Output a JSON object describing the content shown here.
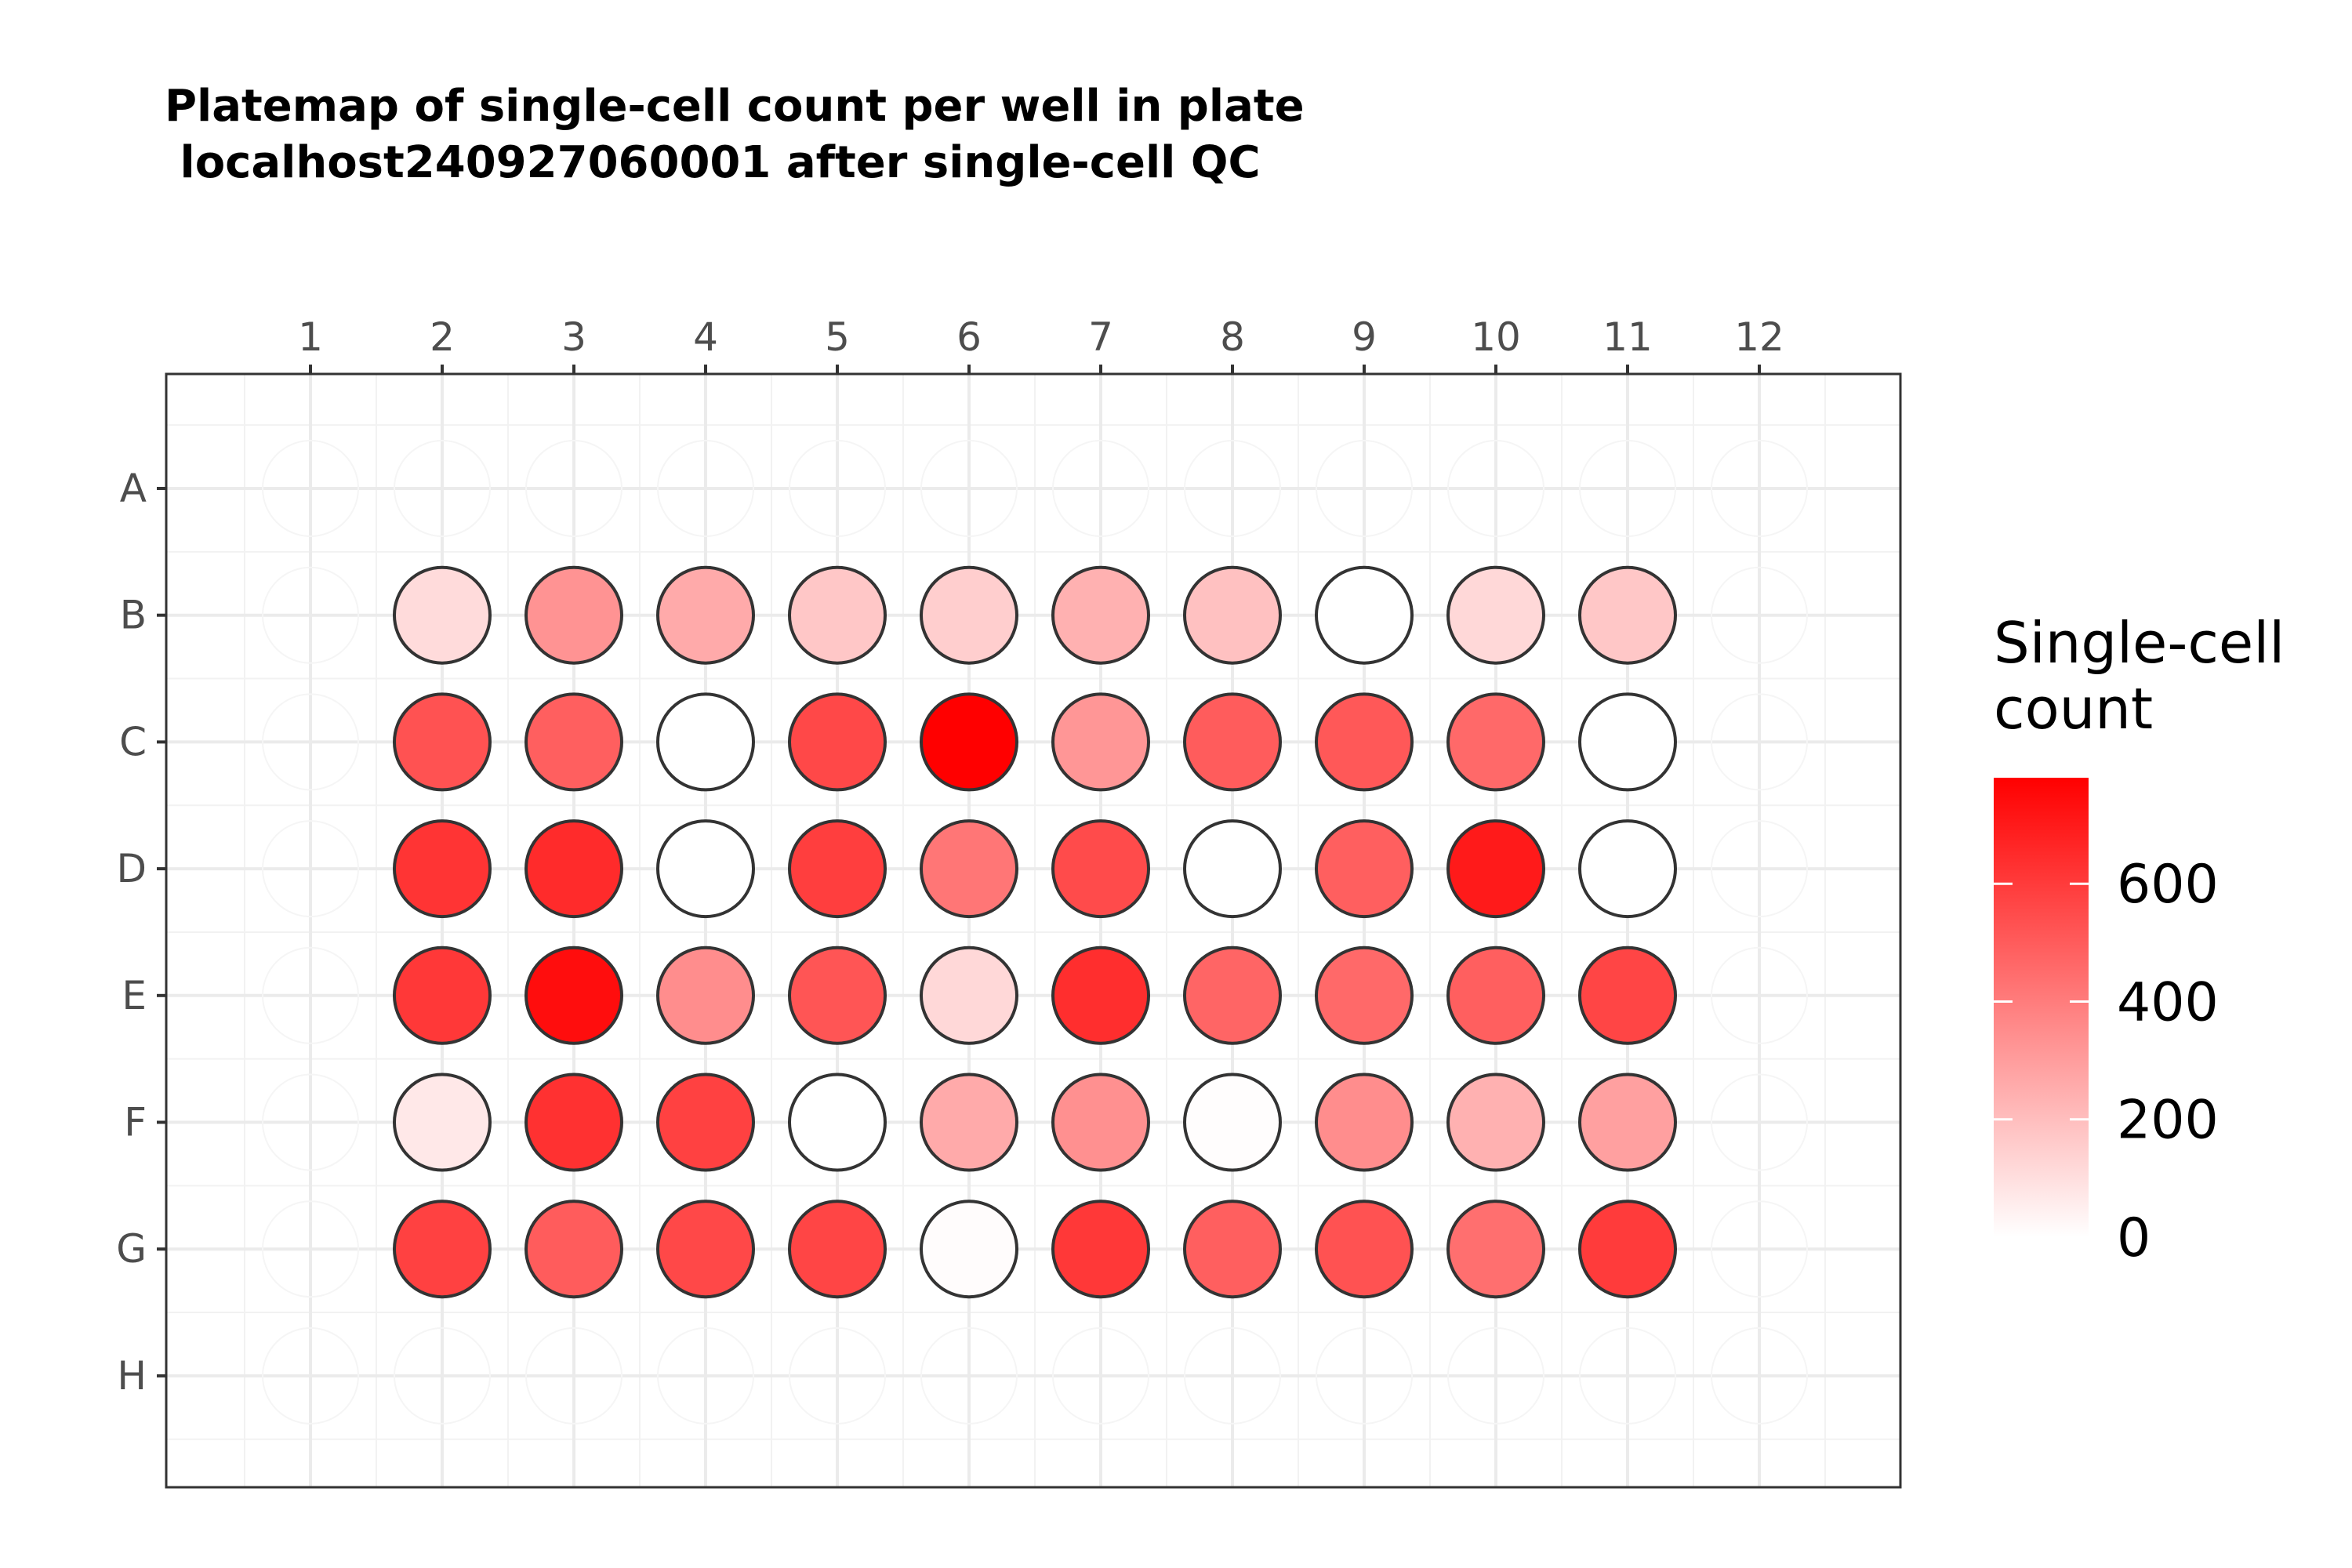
{
  "chart_data": {
    "type": "heatmap",
    "title": "Platemap of single-cell count per well in plate\n localhost240927060001 after single-cell QC",
    "columns": [
      "1",
      "2",
      "3",
      "4",
      "5",
      "6",
      "7",
      "8",
      "9",
      "10",
      "11",
      "12"
    ],
    "rows": [
      "A",
      "B",
      "C",
      "D",
      "E",
      "F",
      "G",
      "H"
    ],
    "legend": {
      "title": "Single-cell\ncount",
      "ticks": [
        0,
        200,
        400,
        600
      ],
      "range": [
        0,
        780
      ],
      "color_low": "#ffffff",
      "color_high": "#ff0000"
    },
    "grid": true,
    "legend_position": "right",
    "wells": [
      {
        "row": "B",
        "col": 2,
        "value": 110
      },
      {
        "row": "B",
        "col": 3,
        "value": 330
      },
      {
        "row": "B",
        "col": 4,
        "value": 260
      },
      {
        "row": "B",
        "col": 5,
        "value": 170
      },
      {
        "row": "B",
        "col": 6,
        "value": 150
      },
      {
        "row": "B",
        "col": 7,
        "value": 240
      },
      {
        "row": "B",
        "col": 8,
        "value": 190
      },
      {
        "row": "B",
        "col": 9,
        "value": 0
      },
      {
        "row": "B",
        "col": 10,
        "value": 120
      },
      {
        "row": "B",
        "col": 11,
        "value": 170
      },
      {
        "row": "C",
        "col": 2,
        "value": 530
      },
      {
        "row": "C",
        "col": 3,
        "value": 490
      },
      {
        "row": "C",
        "col": 4,
        "value": 0
      },
      {
        "row": "C",
        "col": 5,
        "value": 560
      },
      {
        "row": "C",
        "col": 6,
        "value": 780
      },
      {
        "row": "C",
        "col": 7,
        "value": 320
      },
      {
        "row": "C",
        "col": 8,
        "value": 500
      },
      {
        "row": "C",
        "col": 9,
        "value": 510
      },
      {
        "row": "C",
        "col": 10,
        "value": 460
      },
      {
        "row": "C",
        "col": 11,
        "value": 0
      },
      {
        "row": "D",
        "col": 2,
        "value": 620
      },
      {
        "row": "D",
        "col": 3,
        "value": 650
      },
      {
        "row": "D",
        "col": 4,
        "value": 0
      },
      {
        "row": "D",
        "col": 5,
        "value": 590
      },
      {
        "row": "D",
        "col": 6,
        "value": 420
      },
      {
        "row": "D",
        "col": 7,
        "value": 550
      },
      {
        "row": "D",
        "col": 8,
        "value": 0
      },
      {
        "row": "D",
        "col": 9,
        "value": 490
      },
      {
        "row": "D",
        "col": 10,
        "value": 700
      },
      {
        "row": "D",
        "col": 11,
        "value": 0
      },
      {
        "row": "E",
        "col": 2,
        "value": 610
      },
      {
        "row": "E",
        "col": 3,
        "value": 740
      },
      {
        "row": "E",
        "col": 4,
        "value": 350
      },
      {
        "row": "E",
        "col": 5,
        "value": 520
      },
      {
        "row": "E",
        "col": 6,
        "value": 120
      },
      {
        "row": "E",
        "col": 7,
        "value": 640
      },
      {
        "row": "E",
        "col": 8,
        "value": 470
      },
      {
        "row": "E",
        "col": 9,
        "value": 460
      },
      {
        "row": "E",
        "col": 10,
        "value": 490
      },
      {
        "row": "E",
        "col": 11,
        "value": 570
      },
      {
        "row": "F",
        "col": 2,
        "value": 70
      },
      {
        "row": "F",
        "col": 3,
        "value": 630
      },
      {
        "row": "F",
        "col": 4,
        "value": 580
      },
      {
        "row": "F",
        "col": 5,
        "value": 0
      },
      {
        "row": "F",
        "col": 6,
        "value": 260
      },
      {
        "row": "F",
        "col": 7,
        "value": 340
      },
      {
        "row": "F",
        "col": 8,
        "value": 5
      },
      {
        "row": "F",
        "col": 9,
        "value": 350
      },
      {
        "row": "F",
        "col": 10,
        "value": 240
      },
      {
        "row": "F",
        "col": 11,
        "value": 290
      },
      {
        "row": "G",
        "col": 2,
        "value": 580
      },
      {
        "row": "G",
        "col": 3,
        "value": 500
      },
      {
        "row": "G",
        "col": 4,
        "value": 560
      },
      {
        "row": "G",
        "col": 5,
        "value": 570
      },
      {
        "row": "G",
        "col": 6,
        "value": 10
      },
      {
        "row": "G",
        "col": 7,
        "value": 610
      },
      {
        "row": "G",
        "col": 8,
        "value": 490
      },
      {
        "row": "G",
        "col": 9,
        "value": 530
      },
      {
        "row": "G",
        "col": 10,
        "value": 440
      },
      {
        "row": "G",
        "col": 11,
        "value": 600
      }
    ]
  }
}
